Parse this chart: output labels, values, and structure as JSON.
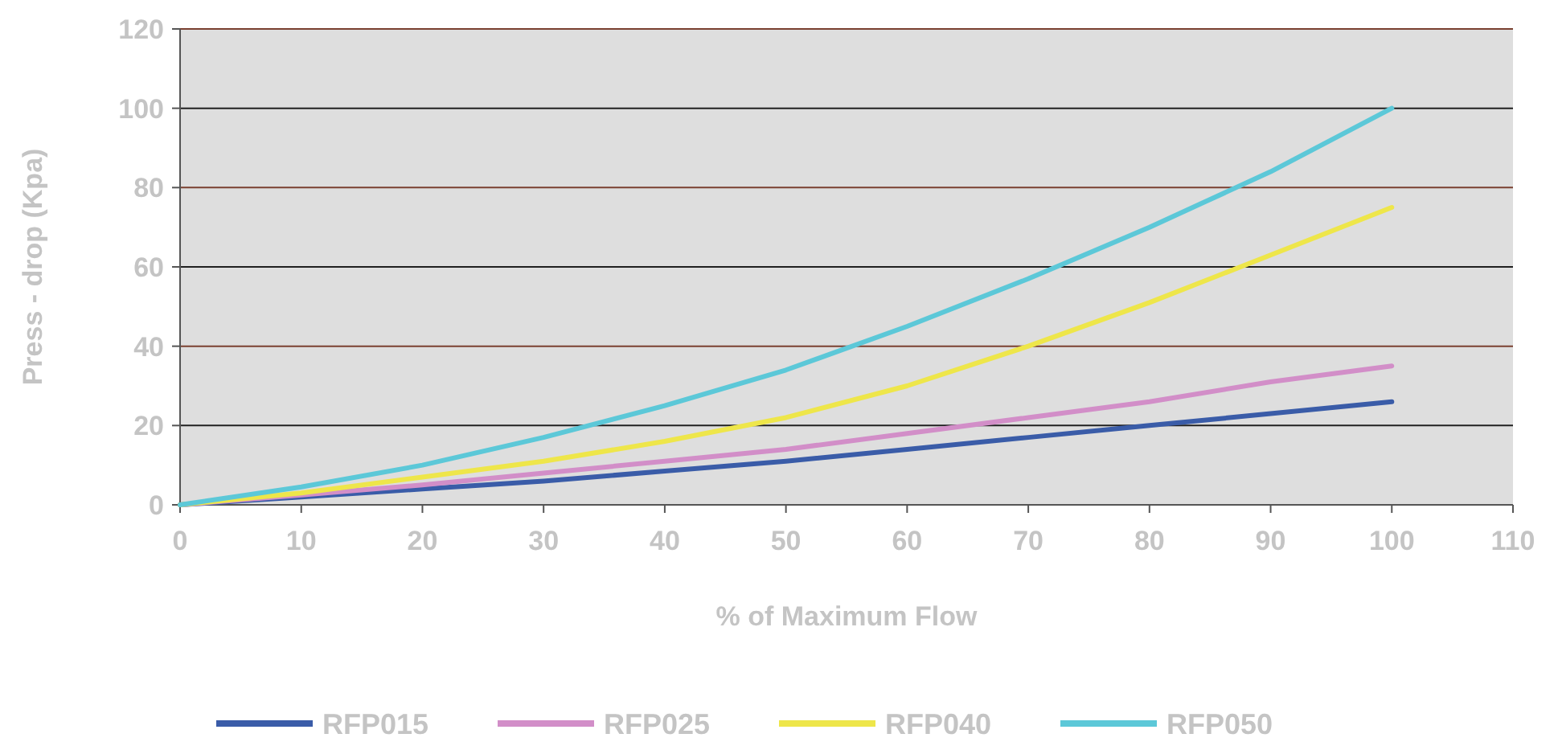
{
  "chart_data": {
    "type": "line",
    "xlabel": "% of Maximum Flow",
    "ylabel": "Press - drop (Kpa)",
    "x": [
      0,
      10,
      20,
      30,
      40,
      50,
      60,
      70,
      80,
      90,
      100
    ],
    "series": [
      {
        "name": "RFP015",
        "color": "#3a5ca8",
        "values": [
          0,
          2,
          4,
          6,
          8.5,
          11,
          14,
          17,
          20,
          23,
          26
        ]
      },
      {
        "name": "RFP025",
        "color": "#d28ec8",
        "values": [
          0,
          2.5,
          5,
          8,
          11,
          14,
          18,
          22,
          26,
          31,
          35
        ]
      },
      {
        "name": "RFP040",
        "color": "#eee64a",
        "values": [
          0,
          3,
          7,
          11,
          16,
          22,
          30,
          40,
          51,
          63,
          75
        ]
      },
      {
        "name": "RFP050",
        "color": "#5cc8d8",
        "values": [
          0,
          4.5,
          10,
          17,
          25,
          34,
          45,
          57,
          70,
          84,
          100
        ]
      }
    ],
    "xlim": [
      0,
      110
    ],
    "xticks": [
      0,
      10,
      20,
      30,
      40,
      50,
      60,
      70,
      80,
      90,
      100,
      110
    ],
    "ylim": [
      0,
      120
    ],
    "yticks": [
      0,
      20,
      40,
      60,
      80,
      100,
      120
    ],
    "grid": "y",
    "legend": "bottom",
    "marker": "none",
    "line_style": "solid"
  }
}
